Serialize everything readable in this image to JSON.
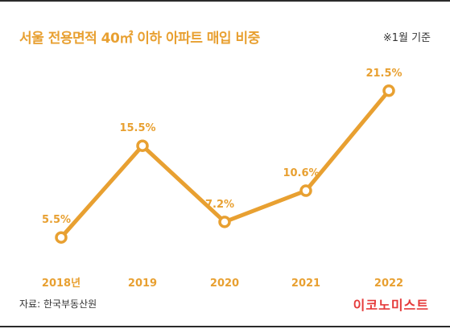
{
  "header": {
    "title": "서울 전용면적 40㎡ 이하 아파트 매입 비중",
    "note": "※1월 기준"
  },
  "footer": {
    "source": "자료: 한국부동산원",
    "brand": "이코노미스트"
  },
  "colors": {
    "accent": "#e8a031",
    "brand": "#e53a3a"
  },
  "chart_data": {
    "type": "line",
    "categories": [
      "2018년",
      "2019",
      "2020",
      "2021",
      "2022"
    ],
    "series": [
      {
        "values": [
          5.5,
          15.5,
          7.2,
          10.6,
          21.5
        ],
        "labels": [
          "5.5%",
          "15.5%",
          "7.2%",
          "10.6%",
          "21.5%"
        ]
      }
    ],
    "ylim": [
      0,
      25
    ],
    "grid": false,
    "legend": "none"
  }
}
